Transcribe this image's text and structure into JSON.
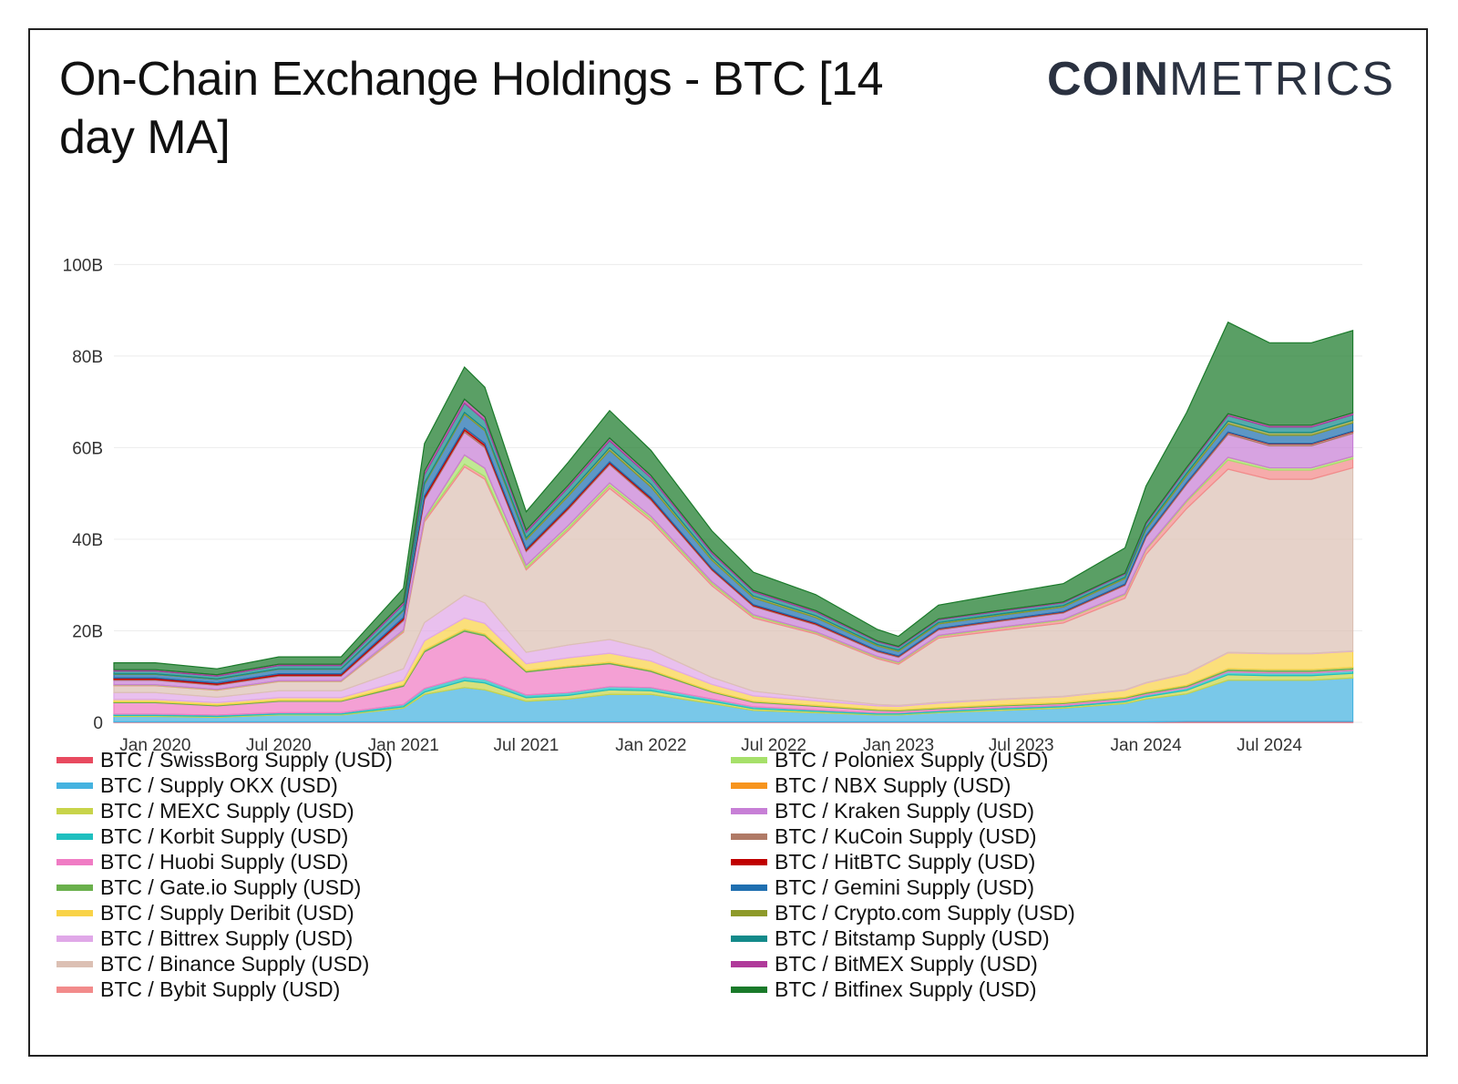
{
  "header": {
    "title": "On-Chain Exchange Holdings - BTC [14 day MA]",
    "logo_bold": "COIN",
    "logo_light": "METRICS"
  },
  "chart_data": {
    "type": "area",
    "stacked": true,
    "title": "On-Chain Exchange Holdings - BTC [14 day MA]",
    "xlabel": "",
    "ylabel": "",
    "ylim": [
      0,
      115
    ],
    "y_unit": "B USD",
    "grid": true,
    "legend_position": "bottom",
    "x_ticks": [
      "Jan 2020",
      "Jul 2020",
      "Jan 2021",
      "Jul 2021",
      "Jan 2022",
      "Jul 2022",
      "Jan 2023",
      "Jul 2023",
      "Jan 2024",
      "Jul 2024"
    ],
    "y_ticks": [
      "0",
      "20B",
      "40B",
      "60B",
      "80B",
      "100B"
    ],
    "y_tick_values": [
      0,
      20,
      40,
      60,
      80,
      100
    ],
    "x": [
      "2019-11",
      "2020-01",
      "2020-04",
      "2020-07",
      "2020-10",
      "2021-01",
      "2021-02",
      "2021-04",
      "2021-05",
      "2021-07",
      "2021-09",
      "2021-11",
      "2022-01",
      "2022-04",
      "2022-06",
      "2022-09",
      "2022-12",
      "2023-01",
      "2023-03",
      "2023-06",
      "2023-09",
      "2023-12",
      "2024-01",
      "2024-03",
      "2024-05",
      "2024-07",
      "2024-09",
      "2024-11"
    ],
    "series": [
      {
        "name": "BTC / SwissBorg Supply (USD)",
        "color": "#e84a5f",
        "values": [
          0.1,
          0.1,
          0.1,
          0.1,
          0.1,
          0.1,
          0.1,
          0.1,
          0.1,
          0.1,
          0.1,
          0.1,
          0.1,
          0.1,
          0.1,
          0.1,
          0.1,
          0.1,
          0.1,
          0.1,
          0.1,
          0.1,
          0.1,
          0.2,
          0.2,
          0.2,
          0.2,
          0.2
        ]
      },
      {
        "name": "BTC / Supply OKX (USD)",
        "color": "#45b3e0",
        "values": [
          1.2,
          1.2,
          1.0,
          1.5,
          1.5,
          3.0,
          6.0,
          7.5,
          7.0,
          4.5,
          5.0,
          6.0,
          6.0,
          4.0,
          2.5,
          2.0,
          1.5,
          1.5,
          2.0,
          2.5,
          3.0,
          4.0,
          5.0,
          6.0,
          9.0,
          9.0,
          9.0,
          9.5
        ]
      },
      {
        "name": "BTC / MEXC Supply (USD)",
        "color": "#c8d44a",
        "values": [
          0.2,
          0.2,
          0.2,
          0.2,
          0.2,
          0.3,
          0.5,
          1.5,
          1.5,
          0.8,
          0.8,
          1.0,
          0.8,
          0.5,
          0.4,
          0.3,
          0.2,
          0.2,
          0.2,
          0.3,
          0.3,
          0.4,
          0.5,
          0.8,
          1.2,
          1.0,
          1.0,
          1.0
        ]
      },
      {
        "name": "BTC / Korbit Supply (USD)",
        "color": "#1fbfbf",
        "values": [
          0.3,
          0.3,
          0.3,
          0.3,
          0.3,
          0.5,
          0.8,
          0.8,
          0.8,
          0.6,
          0.6,
          0.7,
          0.7,
          0.5,
          0.4,
          0.3,
          0.3,
          0.3,
          0.3,
          0.3,
          0.3,
          0.4,
          0.4,
          0.5,
          0.6,
          0.6,
          0.6,
          0.6
        ]
      },
      {
        "name": "BTC / Huobi Supply (USD)",
        "color": "#f07cc4",
        "values": [
          2.5,
          2.5,
          2.0,
          2.5,
          2.5,
          4.0,
          8.0,
          10.0,
          9.5,
          5.0,
          5.5,
          5.0,
          3.5,
          1.5,
          1.0,
          0.8,
          0.5,
          0.4,
          0.4,
          0.4,
          0.4,
          0.4,
          0.3,
          0.3,
          0.3,
          0.3,
          0.3,
          0.3
        ]
      },
      {
        "name": "BTC / Gate.io Supply (USD)",
        "color": "#6ab04c",
        "values": [
          0.2,
          0.2,
          0.2,
          0.2,
          0.2,
          0.3,
          0.4,
          0.4,
          0.4,
          0.3,
          0.3,
          0.3,
          0.3,
          0.2,
          0.2,
          0.2,
          0.2,
          0.2,
          0.2,
          0.2,
          0.2,
          0.2,
          0.3,
          0.3,
          0.4,
          0.4,
          0.4,
          0.4
        ]
      },
      {
        "name": "BTC / Supply Deribit (USD)",
        "color": "#f9d348",
        "values": [
          0.5,
          0.5,
          0.5,
          0.6,
          0.6,
          1.0,
          2.0,
          2.5,
          2.3,
          1.5,
          1.8,
          2.0,
          2.0,
          1.5,
          1.2,
          1.0,
          0.8,
          0.8,
          1.0,
          1.2,
          1.3,
          1.5,
          2.0,
          2.5,
          3.5,
          3.5,
          3.5,
          3.5
        ]
      },
      {
        "name": "BTC / Bittrex Supply (USD)",
        "color": "#e0a8e8",
        "values": [
          1.5,
          1.5,
          1.2,
          1.5,
          1.5,
          2.5,
          4.0,
          5.0,
          4.5,
          2.5,
          2.8,
          3.0,
          2.5,
          1.5,
          1.0,
          0.6,
          0.3,
          0.2,
          0.2,
          0.1,
          0.1,
          0.1,
          0.1,
          0.1,
          0.1,
          0.1,
          0.1,
          0.1
        ]
      },
      {
        "name": "BTC / Binance Supply (USD)",
        "color": "#dcc0b4",
        "values": [
          1.5,
          1.5,
          1.5,
          2.0,
          2.0,
          8.0,
          22.0,
          28.0,
          27.0,
          18.0,
          25.0,
          33.0,
          28.0,
          20.0,
          16.0,
          14.0,
          10.0,
          9.0,
          14.0,
          15.0,
          16.0,
          20.0,
          28.0,
          36.0,
          40.0,
          38.0,
          38.0,
          40.0
        ]
      },
      {
        "name": "BTC / Bybit Supply (USD)",
        "color": "#f28b8b",
        "values": [
          0.1,
          0.1,
          0.1,
          0.1,
          0.1,
          0.3,
          0.5,
          0.6,
          0.6,
          0.4,
          0.5,
          0.6,
          0.6,
          0.5,
          0.4,
          0.3,
          0.3,
          0.3,
          0.4,
          0.5,
          0.6,
          0.8,
          1.0,
          1.5,
          2.0,
          2.0,
          2.0,
          2.0
        ]
      },
      {
        "name": "BTC / Poloniex Supply (USD)",
        "color": "#a6e06a",
        "values": [
          0.1,
          0.1,
          0.1,
          0.1,
          0.1,
          0.2,
          0.3,
          2.0,
          1.8,
          0.6,
          0.6,
          0.6,
          0.5,
          0.4,
          0.3,
          0.2,
          0.2,
          0.2,
          0.2,
          0.2,
          0.2,
          0.2,
          0.2,
          0.3,
          0.6,
          0.5,
          0.5,
          0.5
        ]
      },
      {
        "name": "BTC / NBX Supply (USD)",
        "color": "#f7941d",
        "values": [
          0,
          0,
          0,
          0,
          0,
          0,
          0,
          0,
          0,
          0,
          0,
          0,
          0,
          0,
          0,
          0,
          0,
          0,
          0,
          0,
          0,
          0,
          0,
          0,
          0,
          0,
          0,
          0
        ]
      },
      {
        "name": "BTC / Kraken Supply (USD)",
        "color": "#c77fd6",
        "values": [
          1.0,
          1.0,
          0.9,
          1.0,
          1.0,
          2.0,
          4.0,
          5.0,
          4.5,
          3.0,
          3.5,
          4.0,
          3.5,
          2.5,
          1.8,
          1.5,
          1.0,
          1.0,
          1.2,
          1.3,
          1.4,
          1.8,
          2.5,
          3.5,
          5.0,
          4.8,
          4.8,
          5.0
        ]
      },
      {
        "name": "BTC / KuCoin Supply (USD)",
        "color": "#b07a66",
        "values": [
          0.2,
          0.2,
          0.2,
          0.2,
          0.2,
          0.3,
          0.4,
          0.4,
          0.4,
          0.3,
          0.3,
          0.3,
          0.3,
          0.2,
          0.2,
          0.2,
          0.2,
          0.2,
          0.2,
          0.2,
          0.2,
          0.2,
          0.3,
          0.3,
          0.4,
          0.4,
          0.4,
          0.4
        ]
      },
      {
        "name": "BTC / HitBTC Supply (USD)",
        "color": "#c00000",
        "values": [
          0.3,
          0.3,
          0.3,
          0.3,
          0.3,
          0.4,
          0.5,
          0.5,
          0.5,
          0.3,
          0.3,
          0.3,
          0.3,
          0.2,
          0.2,
          0.2,
          0.1,
          0.1,
          0.1,
          0.1,
          0.1,
          0.1,
          0.1,
          0.1,
          0.1,
          0.1,
          0.1,
          0.1
        ]
      },
      {
        "name": "BTC / Gemini Supply (USD)",
        "color": "#1f6fb0",
        "values": [
          0.8,
          0.8,
          0.8,
          1.0,
          1.0,
          1.5,
          2.5,
          3.0,
          2.8,
          2.0,
          2.3,
          2.5,
          2.3,
          1.8,
          1.5,
          1.2,
          1.0,
          1.0,
          1.0,
          1.0,
          1.0,
          1.2,
          1.3,
          1.5,
          1.8,
          1.8,
          1.8,
          1.8
        ]
      },
      {
        "name": "BTC / Crypto.com Supply (USD)",
        "color": "#8e9a2a",
        "values": [
          0.1,
          0.1,
          0.1,
          0.1,
          0.1,
          0.2,
          0.3,
          0.4,
          0.4,
          0.4,
          0.5,
          0.6,
          0.6,
          0.5,
          0.4,
          0.4,
          0.3,
          0.3,
          0.3,
          0.3,
          0.3,
          0.3,
          0.4,
          0.5,
          0.6,
          0.6,
          0.6,
          0.6
        ]
      },
      {
        "name": "BTC / Bitstamp Supply (USD)",
        "color": "#138a8a",
        "values": [
          0.6,
          0.6,
          0.6,
          0.7,
          0.7,
          1.2,
          1.8,
          2.0,
          1.8,
          1.2,
          1.4,
          1.5,
          1.4,
          1.0,
          0.9,
          0.8,
          0.6,
          0.6,
          0.6,
          0.6,
          0.6,
          0.7,
          0.8,
          1.0,
          1.2,
          1.2,
          1.2,
          1.2
        ]
      },
      {
        "name": "BTC / BitMEX Supply (USD)",
        "color": "#b03a9a",
        "values": [
          0.3,
          0.3,
          0.3,
          0.3,
          0.3,
          0.5,
          0.8,
          0.9,
          0.8,
          0.5,
          0.5,
          0.6,
          0.5,
          0.4,
          0.3,
          0.3,
          0.2,
          0.2,
          0.2,
          0.2,
          0.2,
          0.2,
          0.3,
          0.3,
          0.4,
          0.4,
          0.4,
          0.4
        ]
      },
      {
        "name": "BTC / Bitfinex Supply (USD)",
        "color": "#1a7a2a",
        "values": [
          1.5,
          1.5,
          1.3,
          1.6,
          1.6,
          3.0,
          6.0,
          7.0,
          6.5,
          4.0,
          5.0,
          6.0,
          5.5,
          4.5,
          4.0,
          3.5,
          2.5,
          2.2,
          3.0,
          3.5,
          4.0,
          5.5,
          8.0,
          12.0,
          20.0,
          18.0,
          18.0,
          18.0
        ]
      }
    ]
  }
}
